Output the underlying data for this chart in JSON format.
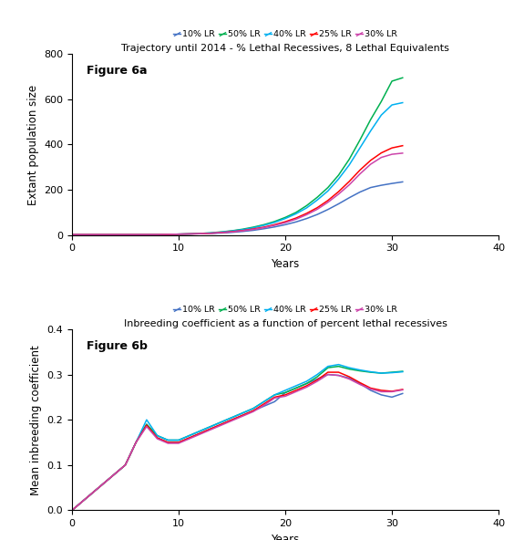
{
  "title_a": "Trajectory until 2014 - % Lethal Recessives, 8 Lethal Equivalents",
  "title_b": "Inbreeding coefficient as a function of percent lethal recessives",
  "xlabel": "Years",
  "ylabel_a": "Extant population size",
  "ylabel_b": "Mean inbreeding coefficient",
  "label_a": "Figure 6a",
  "label_b": "Figure 6b",
  "legend_labels": [
    "10% LR",
    "50% LR",
    "40% LR",
    "25% LR",
    "30% LR"
  ],
  "colors": [
    "#4472c4",
    "#00b050",
    "#00b0f0",
    "#ff0000",
    "#cc44aa"
  ],
  "xlim": [
    0,
    40
  ],
  "ylim_a": [
    0,
    800
  ],
  "ylim_b": [
    0.0,
    0.4
  ],
  "yticks_a": [
    0,
    200,
    400,
    600,
    800
  ],
  "yticks_b": [
    0.0,
    0.1,
    0.2,
    0.3,
    0.4
  ],
  "xticks": [
    0,
    10,
    20,
    30,
    40
  ],
  "pop_years": [
    0,
    1,
    2,
    3,
    4,
    5,
    6,
    7,
    8,
    9,
    10,
    11,
    12,
    13,
    14,
    15,
    16,
    17,
    18,
    19,
    20,
    21,
    22,
    23,
    24,
    25,
    26,
    27,
    28,
    29,
    30,
    31
  ],
  "pop_10LR": [
    2,
    2,
    2,
    2,
    2,
    2,
    2,
    2,
    2,
    3,
    4,
    5,
    6,
    7,
    9,
    12,
    16,
    21,
    28,
    36,
    46,
    58,
    73,
    91,
    113,
    138,
    165,
    190,
    210,
    220,
    228,
    235
  ],
  "pop_50LR": [
    2,
    2,
    2,
    2,
    2,
    2,
    2,
    2,
    2,
    3,
    4,
    5,
    7,
    10,
    14,
    19,
    26,
    35,
    46,
    60,
    78,
    100,
    130,
    167,
    210,
    265,
    335,
    420,
    510,
    590,
    680,
    695
  ],
  "pop_40LR": [
    2,
    2,
    2,
    2,
    2,
    2,
    2,
    2,
    2,
    3,
    4,
    5,
    7,
    9,
    13,
    18,
    24,
    32,
    43,
    56,
    73,
    94,
    120,
    155,
    195,
    248,
    310,
    385,
    460,
    530,
    575,
    585
  ],
  "pop_25LR": [
    2,
    2,
    2,
    2,
    2,
    2,
    2,
    2,
    2,
    3,
    4,
    5,
    6,
    8,
    11,
    15,
    20,
    27,
    35,
    46,
    59,
    75,
    96,
    121,
    153,
    192,
    237,
    287,
    330,
    363,
    385,
    395
  ],
  "pop_30LR": [
    2,
    2,
    2,
    2,
    2,
    2,
    2,
    2,
    2,
    3,
    4,
    5,
    6,
    8,
    11,
    14,
    19,
    25,
    33,
    43,
    55,
    70,
    90,
    114,
    145,
    181,
    222,
    270,
    313,
    343,
    357,
    362
  ],
  "ib_years": [
    0,
    1,
    2,
    3,
    4,
    5,
    6,
    7,
    8,
    9,
    10,
    11,
    12,
    13,
    14,
    15,
    16,
    17,
    18,
    19,
    20,
    21,
    22,
    23,
    24,
    25,
    26,
    27,
    28,
    29,
    30,
    31
  ],
  "ib_10LR": [
    0,
    0.02,
    0.04,
    0.06,
    0.08,
    0.1,
    0.15,
    0.19,
    0.16,
    0.15,
    0.15,
    0.16,
    0.17,
    0.18,
    0.19,
    0.2,
    0.21,
    0.22,
    0.23,
    0.24,
    0.26,
    0.27,
    0.28,
    0.29,
    0.3,
    0.298,
    0.292,
    0.28,
    0.265,
    0.255,
    0.25,
    0.258
  ],
  "ib_50LR": [
    0,
    0.02,
    0.04,
    0.06,
    0.08,
    0.1,
    0.15,
    0.19,
    0.165,
    0.155,
    0.155,
    0.165,
    0.175,
    0.185,
    0.195,
    0.205,
    0.215,
    0.225,
    0.24,
    0.255,
    0.26,
    0.27,
    0.28,
    0.295,
    0.315,
    0.318,
    0.312,
    0.308,
    0.305,
    0.303,
    0.305,
    0.307
  ],
  "ib_40LR": [
    0,
    0.02,
    0.04,
    0.06,
    0.08,
    0.1,
    0.15,
    0.2,
    0.165,
    0.155,
    0.155,
    0.165,
    0.175,
    0.185,
    0.195,
    0.205,
    0.215,
    0.225,
    0.24,
    0.255,
    0.265,
    0.275,
    0.285,
    0.3,
    0.318,
    0.322,
    0.315,
    0.31,
    0.306,
    0.303,
    0.304,
    0.306
  ],
  "ib_25LR": [
    0,
    0.02,
    0.04,
    0.06,
    0.08,
    0.1,
    0.15,
    0.188,
    0.16,
    0.15,
    0.15,
    0.16,
    0.17,
    0.18,
    0.19,
    0.2,
    0.21,
    0.22,
    0.235,
    0.25,
    0.255,
    0.265,
    0.275,
    0.288,
    0.305,
    0.305,
    0.295,
    0.282,
    0.27,
    0.265,
    0.263,
    0.267
  ],
  "ib_30LR": [
    0,
    0.02,
    0.04,
    0.06,
    0.08,
    0.1,
    0.15,
    0.185,
    0.158,
    0.148,
    0.148,
    0.158,
    0.168,
    0.178,
    0.188,
    0.198,
    0.208,
    0.218,
    0.232,
    0.248,
    0.252,
    0.262,
    0.272,
    0.285,
    0.3,
    0.298,
    0.29,
    0.278,
    0.268,
    0.262,
    0.262,
    0.266
  ]
}
